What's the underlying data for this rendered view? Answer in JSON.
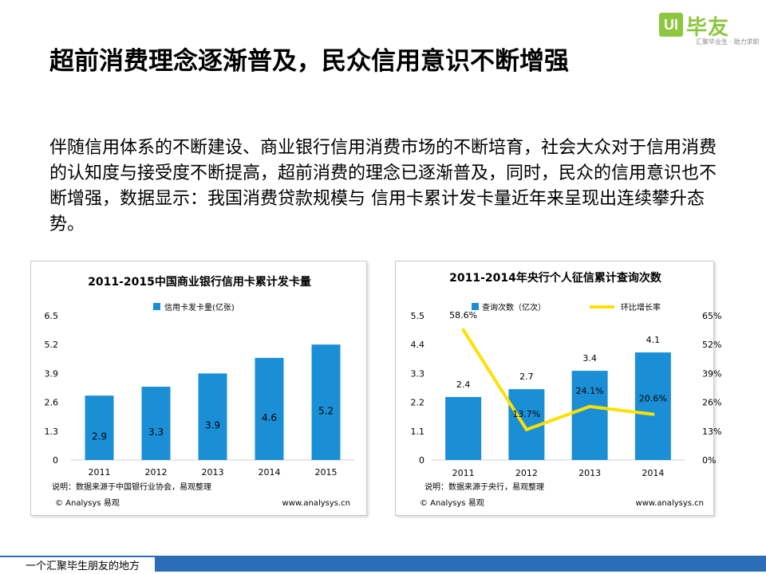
{
  "logo": {
    "mark": "UI",
    "brand": "毕友",
    "tagline": "汇聚毕业生 · 助力求职"
  },
  "title": "超前消费理念逐渐普及，民众信用意识不断增强",
  "body": "伴随信用体系的不断建设、商业银行信用消费市场的不断培育，社会大众对于信用消费的认知度与接受度不断提高，超前消费的理念已逐渐普及，同时，民众的信用意识也不断增强，数据显示：我国消费贷款规模与 信用卡累计发卡量近年来呈现出连续攀升态势。",
  "footer": {
    "text": "一个汇聚毕生朋友的地方"
  },
  "colors": {
    "bar": "#1b8fd6",
    "line": "#ffe000",
    "footer": "#2b6db6",
    "logo": "#8dc63f"
  },
  "chart_data": [
    {
      "type": "bar",
      "title": "2011-2015中国商业银行信用卡累计发卡量",
      "categories": [
        "2011",
        "2012",
        "2013",
        "2014",
        "2015"
      ],
      "series": [
        {
          "name": "信用卡发卡量(亿张)",
          "values": [
            2.9,
            3.3,
            3.9,
            4.6,
            5.2
          ]
        }
      ],
      "data_labels": [
        "2.9",
        "3.3",
        "3.9",
        "4.6",
        "5.2"
      ],
      "ylim": [
        0,
        6.5
      ],
      "yticks": [
        "0",
        "1.3",
        "2.6",
        "3.9",
        "5.2",
        "6.5"
      ],
      "legend": "top-left",
      "note": "说明：数据来源于中国银行业协会，易观整理",
      "source_left": "© Analysys 易观",
      "source_right": "www.analysys.cn"
    },
    {
      "type": "bar+line",
      "title": "2011-2014年央行个人征信累计查询次数",
      "categories": [
        "2011",
        "2012",
        "2013",
        "2014"
      ],
      "series": [
        {
          "name": "查询次数（亿次）",
          "type": "bar",
          "axis": "left",
          "values": [
            2.4,
            2.7,
            3.4,
            4.1
          ]
        },
        {
          "name": "环比增长率",
          "type": "line",
          "axis": "right",
          "values": [
            58.6,
            13.7,
            24.1,
            20.6
          ]
        }
      ],
      "bar_labels": [
        "2.4",
        "2.7",
        "3.4",
        "4.1"
      ],
      "line_labels": [
        "58.6%",
        "13.7%",
        "24.1%",
        "20.6%"
      ],
      "ylim": [
        0,
        5.5
      ],
      "yticks": [
        "0",
        "1.1",
        "2.2",
        "3.3",
        "4.4",
        "5.5"
      ],
      "y2lim": [
        0,
        65
      ],
      "y2ticks": [
        "0%",
        "13%",
        "26%",
        "39%",
        "52%",
        "65%"
      ],
      "legend": "top",
      "note": "说明：数据来源于央行，易观整理",
      "source_left": "© Analysys 易观",
      "source_right": "www.analysys.cn"
    }
  ]
}
